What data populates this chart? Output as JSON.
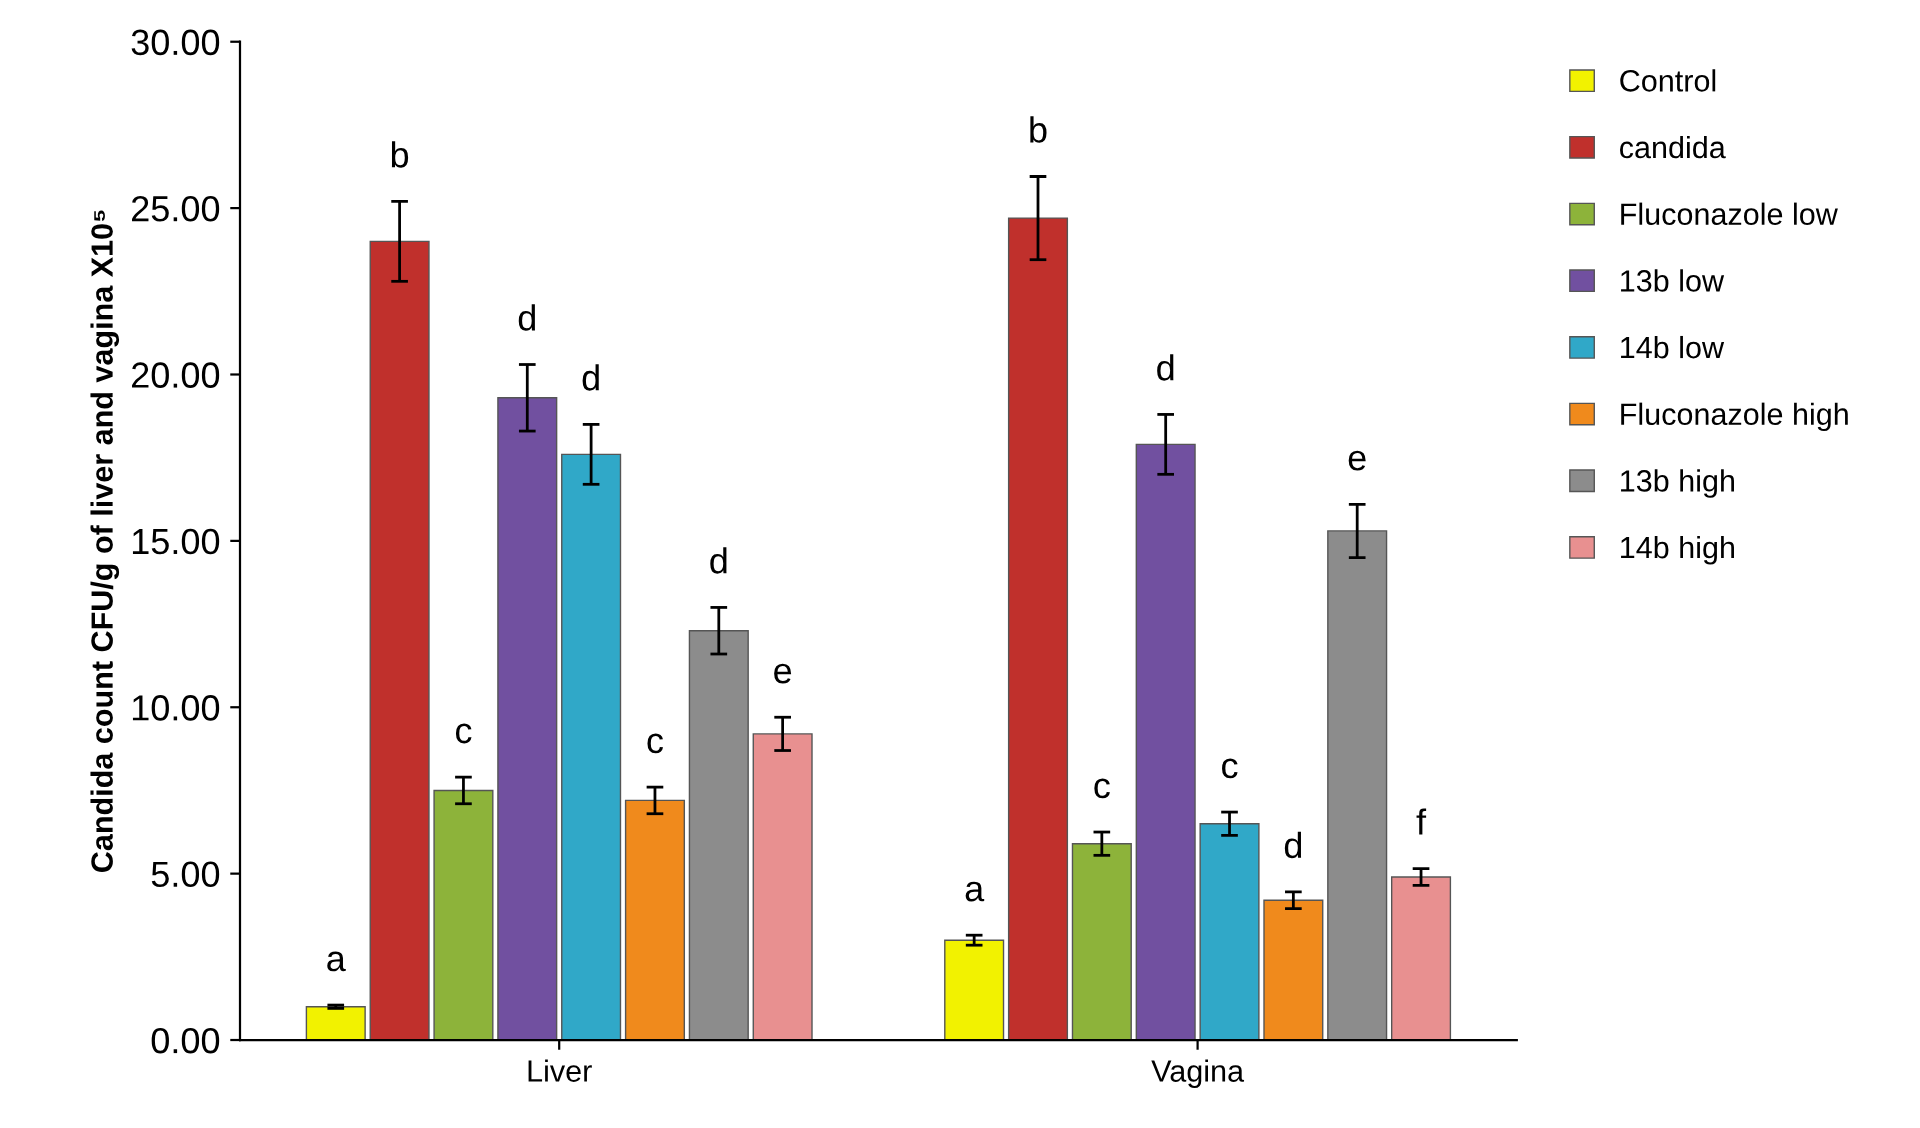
{
  "chart_data": {
    "type": "bar",
    "ylabel": "Candida count CFU/g of liver and vagina X10⁵",
    "categories": [
      "Liver",
      "Vagina"
    ],
    "series": [
      {
        "name": "Control",
        "color": "#f2f200",
        "values": [
          1.0,
          3.0
        ],
        "errors": [
          0.05,
          0.15
        ],
        "value_labels": [
          "a",
          "a"
        ]
      },
      {
        "name": "candida",
        "color": "#c0302c",
        "values": [
          24.0,
          24.7
        ],
        "errors": [
          1.2,
          1.25
        ],
        "value_labels": [
          "b",
          "b"
        ]
      },
      {
        "name": "Fluconazole low",
        "color": "#8db33a",
        "values": [
          7.5,
          5.9
        ],
        "errors": [
          0.4,
          0.35
        ],
        "value_labels": [
          "c",
          "c"
        ]
      },
      {
        "name": "13b low",
        "color": "#7150a0",
        "values": [
          19.3,
          17.9
        ],
        "errors": [
          1.0,
          0.9
        ],
        "value_labels": [
          "d",
          "d"
        ]
      },
      {
        "name": "14b low",
        "color": "#30a8c8",
        "values": [
          17.6,
          6.5
        ],
        "errors": [
          0.9,
          0.35
        ],
        "value_labels": [
          "d",
          "c"
        ]
      },
      {
        "name": "Fluconazole high",
        "color": "#f08a1c",
        "values": [
          7.2,
          4.2
        ],
        "errors": [
          0.4,
          0.25
        ],
        "value_labels": [
          "c",
          "d"
        ]
      },
      {
        "name": "13b high",
        "color": "#8c8c8c",
        "values": [
          12.3,
          15.3
        ],
        "errors": [
          0.7,
          0.8
        ],
        "value_labels": [
          "d",
          "e"
        ]
      },
      {
        "name": "14b high",
        "color": "#e89090",
        "values": [
          9.2,
          4.9
        ],
        "errors": [
          0.5,
          0.25
        ],
        "value_labels": [
          "e",
          "f"
        ]
      }
    ],
    "ylim": [
      0,
      30
    ],
    "yticks": [
      {
        "value": 0,
        "label": "0.00"
      },
      {
        "value": 5,
        "label": "5.00"
      },
      {
        "value": 10,
        "label": "10.00"
      },
      {
        "value": 15,
        "label": "15.00"
      },
      {
        "value": 20,
        "label": "20.00"
      },
      {
        "value": 25,
        "label": "25.00"
      },
      {
        "value": 30,
        "label": "30.00"
      }
    ],
    "grid": false,
    "legend": "right"
  }
}
